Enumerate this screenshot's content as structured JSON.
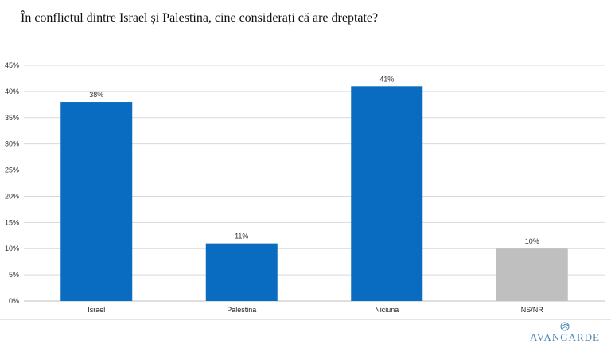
{
  "title": "În conflictul dintre Israel și Palestina, cine considerați că are dreptate?",
  "brand": {
    "logo_text": "AVANGARDE",
    "logo_icon": "globe-leaf-icon",
    "color": "#4a86b5"
  },
  "colors": {
    "primary_bar": "#0a6cc1",
    "neutral_bar": "#bfbfbf",
    "grid": "#d9d9d9"
  },
  "chart_data": {
    "type": "bar",
    "title": "În conflictul dintre Israel și Palestina, cine considerați că are dreptate?",
    "categories": [
      "Israel",
      "Palestina",
      "Niciuna",
      "NS/NR"
    ],
    "values": [
      38,
      11,
      41,
      10
    ],
    "data_labels": [
      "38%",
      "11%",
      "41%",
      "10%"
    ],
    "bar_colors": [
      "#0a6cc1",
      "#0a6cc1",
      "#0a6cc1",
      "#bfbfbf"
    ],
    "yticks": [
      "0%",
      "5%",
      "10%",
      "15%",
      "20%",
      "25%",
      "30%",
      "35%",
      "40%",
      "45%"
    ],
    "ylim": [
      0,
      45
    ],
    "ytick_step": 5,
    "grid": true,
    "legend": "none",
    "xlabel": "",
    "ylabel": ""
  }
}
